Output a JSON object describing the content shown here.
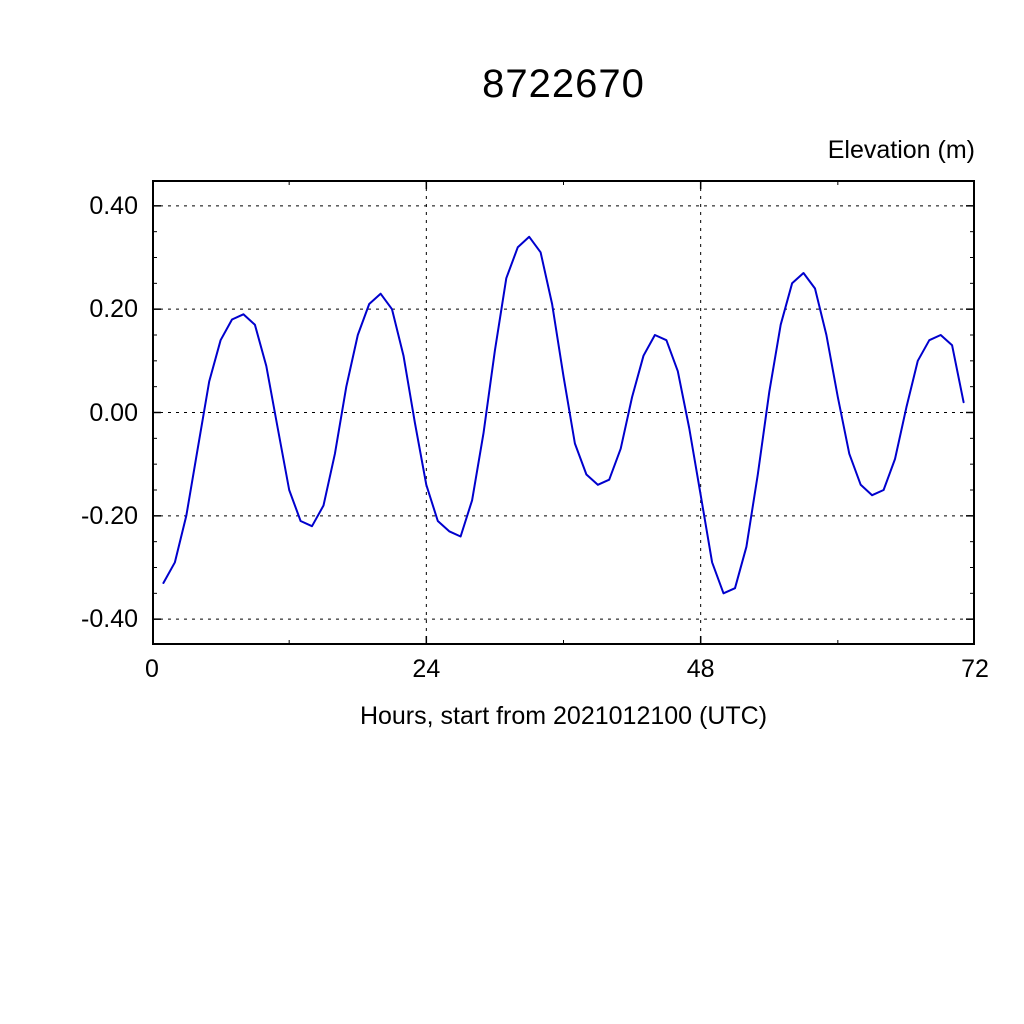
{
  "page": {
    "background": "#ffffff"
  },
  "chart_data": {
    "type": "line",
    "title": "8722670",
    "right_label": "Elevation (m)",
    "xlabel": "Hours, start from 2021012100 (UTC)",
    "xlim": [
      0,
      72
    ],
    "ylim": [
      -0.45,
      0.45
    ],
    "xticks": {
      "major": [
        0,
        24,
        48,
        72
      ],
      "labels": [
        "0",
        "24",
        "48",
        "72"
      ],
      "minor_step": 12
    },
    "yticks": {
      "major": [
        0.4,
        0.2,
        0.0,
        -0.2,
        -0.4
      ],
      "labels": [
        "0.40",
        "0.20",
        "0.00",
        "-0.20",
        "-0.40"
      ],
      "minor_step": 0.05
    },
    "grid": {
      "style": "dashed",
      "color": "#000000",
      "x_lines": [
        24,
        48
      ],
      "y_lines": [
        0.4,
        0.2,
        0.0,
        -0.2,
        -0.4
      ]
    },
    "line_color": "#0000cd",
    "frame_color": "#000000",
    "x": [
      1,
      2,
      3,
      4,
      5,
      6,
      7,
      8,
      9,
      10,
      11,
      12,
      13,
      14,
      15,
      16,
      17,
      18,
      19,
      20,
      21,
      22,
      23,
      24,
      25,
      26,
      27,
      28,
      29,
      30,
      31,
      32,
      33,
      34,
      35,
      36,
      37,
      38,
      39,
      40,
      41,
      42,
      43,
      44,
      45,
      46,
      47,
      48,
      49,
      50,
      51,
      52,
      53,
      54,
      55,
      56,
      57,
      58,
      59,
      60,
      61,
      62,
      63,
      64,
      65,
      66,
      67,
      68,
      69,
      70,
      71
    ],
    "series": [
      {
        "name": "elevation",
        "values": [
          -0.33,
          -0.29,
          -0.2,
          -0.07,
          0.06,
          0.14,
          0.18,
          0.19,
          0.17,
          0.09,
          -0.03,
          -0.15,
          -0.21,
          -0.22,
          -0.18,
          -0.08,
          0.05,
          0.15,
          0.21,
          0.23,
          0.2,
          0.11,
          -0.02,
          -0.14,
          -0.21,
          -0.23,
          -0.24,
          -0.17,
          -0.04,
          0.12,
          0.26,
          0.32,
          0.34,
          0.31,
          0.21,
          0.07,
          -0.06,
          -0.12,
          -0.14,
          -0.13,
          -0.07,
          0.03,
          0.11,
          0.15,
          0.14,
          0.08,
          -0.03,
          -0.16,
          -0.29,
          -0.35,
          -0.34,
          -0.26,
          -0.12,
          0.04,
          0.17,
          0.25,
          0.27,
          0.24,
          0.15,
          0.03,
          -0.08,
          -0.14,
          -0.16,
          -0.15,
          -0.09,
          0.01,
          0.1,
          0.14,
          0.15,
          0.13,
          0.02
        ]
      }
    ]
  }
}
